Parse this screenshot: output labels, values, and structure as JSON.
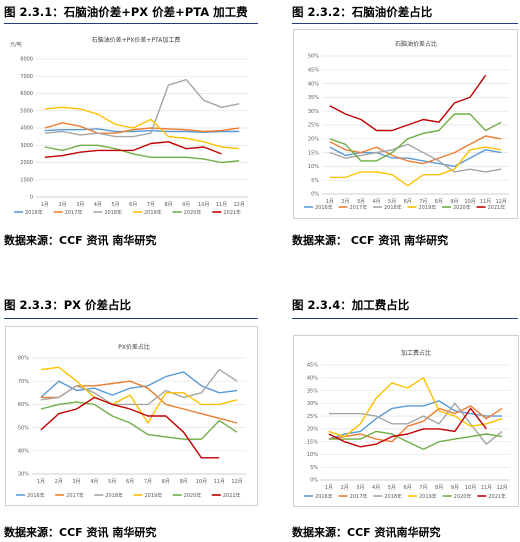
{
  "captions": [
    "图 2.3.1：石脑油价差+PX 价差+PTA 加工费",
    "图 2.3.2：石脑油价差占比",
    "图 2.3.3：PX 价差占比",
    "图 2.3.4：加工费占比"
  ],
  "sources": [
    "数据来源：CCF 资讯 南华研究",
    "数据来源： CCF 资讯 南华研究",
    "数据来源：CCF 资讯 南华研究",
    "数据来源：CCF 资讯南华研究"
  ],
  "series_colors": [
    "#5b9bd5",
    "#ed7d31",
    "#a5a5a5",
    "#ffc000",
    "#70ad47",
    "#c00000"
  ],
  "chart_data": [
    {
      "type": "line",
      "title": "石脑油价差+PX价差+PTA加工费",
      "ylabel": "元/吨",
      "ylim": [
        0,
        8000
      ],
      "yticks": [
        "0",
        "1000",
        "2000",
        "3000",
        "4000",
        "5000",
        "6000",
        "7000",
        "8000"
      ],
      "categories": [
        "1月",
        "2月",
        "3月",
        "4月",
        "5月",
        "6月",
        "7月",
        "8月",
        "9月",
        "10月",
        "11月",
        "12月"
      ],
      "series": [
        {
          "name": "2016年",
          "values": [
            3850,
            3900,
            3900,
            3950,
            3800,
            3800,
            3850,
            3800,
            3800,
            3750,
            3800,
            3800
          ]
        },
        {
          "name": "2017年",
          "values": [
            4000,
            4300,
            4100,
            3700,
            3700,
            3900,
            4000,
            3950,
            3900,
            3800,
            3850,
            4000
          ]
        },
        {
          "name": "2018年",
          "values": [
            3700,
            3800,
            3600,
            3700,
            3500,
            3500,
            3700,
            6500,
            6800,
            5600,
            5200,
            5400
          ]
        },
        {
          "name": "2019年",
          "values": [
            5100,
            5200,
            5100,
            4800,
            4200,
            4000,
            4500,
            3500,
            3400,
            3200,
            2900,
            2800
          ]
        },
        {
          "name": "2020年",
          "values": [
            2900,
            2700,
            3000,
            3000,
            2800,
            2500,
            2300,
            2300,
            2300,
            2200,
            2000,
            2100
          ]
        },
        {
          "name": "2021年",
          "values": [
            2300,
            2400,
            2600,
            2700,
            2700,
            2700,
            3100,
            3200,
            2800,
            2900,
            2500,
            null
          ]
        }
      ]
    },
    {
      "type": "line",
      "title": "石脑油价差占比",
      "ylim": [
        0,
        50
      ],
      "yticks": [
        "0%",
        "5%",
        "10%",
        "15%",
        "20%",
        "25%",
        "30%",
        "35%",
        "40%",
        "45%",
        "50%"
      ],
      "categories": [
        "1月",
        "2月",
        "3月",
        "4月",
        "5月",
        "6月",
        "7月",
        "8月",
        "9月",
        "10月",
        "11月",
        "12月"
      ],
      "series": [
        {
          "name": "2016年",
          "values": [
            17,
            14,
            15,
            15,
            13,
            13,
            12,
            11,
            10,
            13,
            16,
            15
          ]
        },
        {
          "name": "2017年",
          "values": [
            19,
            16,
            15,
            17,
            14,
            12,
            11,
            13,
            15,
            18,
            21,
            20
          ]
        },
        {
          "name": "2018年",
          "values": [
            15,
            13,
            14,
            15,
            16,
            18,
            15,
            12,
            8,
            9,
            8,
            9
          ]
        },
        {
          "name": "2019年",
          "values": [
            6,
            6,
            8,
            8,
            7,
            3,
            7,
            7,
            9,
            16,
            17,
            16
          ]
        },
        {
          "name": "2020年",
          "values": [
            20,
            18,
            12,
            12,
            15,
            20,
            22,
            23,
            29,
            29,
            23,
            26
          ]
        },
        {
          "name": "2021年",
          "values": [
            32,
            29,
            27,
            23,
            23,
            25,
            27,
            26,
            33,
            35,
            43,
            null
          ]
        }
      ]
    },
    {
      "type": "line",
      "title": "PX价差占比",
      "ylim": [
        30,
        80
      ],
      "yticks": [
        "30%",
        "40%",
        "50%",
        "60%",
        "70%",
        "80%"
      ],
      "categories": [
        "1月",
        "2月",
        "3月",
        "4月",
        "5月",
        "6月",
        "7月",
        "8月",
        "9月",
        "10月",
        "11月",
        "12月"
      ],
      "series": [
        {
          "name": "2016年",
          "values": [
            63,
            70,
            66,
            67,
            64,
            67,
            68,
            72,
            74,
            68,
            65,
            66
          ]
        },
        {
          "name": "2017年",
          "values": [
            63,
            63,
            68,
            68,
            69,
            70,
            67,
            60,
            58,
            56,
            54,
            52
          ]
        },
        {
          "name": "2018年",
          "values": [
            62,
            63,
            68,
            65,
            60,
            60,
            60,
            66,
            63,
            65,
            75,
            70
          ]
        },
        {
          "name": "2019年",
          "values": [
            75,
            76,
            70,
            63,
            60,
            64,
            52,
            65,
            65,
            60,
            60,
            62
          ]
        },
        {
          "name": "2020年",
          "values": [
            58,
            60,
            61,
            60,
            55,
            52,
            47,
            46,
            45,
            45,
            53,
            48
          ]
        },
        {
          "name": "2021年",
          "values": [
            49,
            56,
            58,
            63,
            60,
            58,
            55,
            55,
            48,
            37,
            37,
            null
          ]
        }
      ]
    },
    {
      "type": "line",
      "title": "加工费占比",
      "ylim": [
        0,
        45
      ],
      "yticks": [
        "0%",
        "5%",
        "10%",
        "15%",
        "20%",
        "25%",
        "30%",
        "35%",
        "40%",
        "45%"
      ],
      "categories": [
        "1月",
        "2月",
        "3月",
        "4月",
        "5月",
        "6月",
        "7月",
        "8月",
        "9月",
        "10月",
        "11月",
        "12月"
      ],
      "series": [
        {
          "name": "2016年",
          "values": [
            16,
            18,
            19,
            24,
            28,
            29,
            29,
            31,
            27,
            26,
            25,
            25
          ]
        },
        {
          "name": "2017年",
          "values": [
            16,
            17,
            18,
            16,
            15,
            21,
            23,
            28,
            26,
            29,
            24,
            28
          ]
        },
        {
          "name": "2018年",
          "values": [
            26,
            26,
            26,
            25,
            22,
            22,
            25,
            22,
            30,
            22,
            14,
            19
          ]
        },
        {
          "name": "2019年",
          "values": [
            19,
            17,
            22,
            32,
            38,
            36,
            40,
            27,
            25,
            21,
            22,
            24
          ]
        },
        {
          "name": "2020年",
          "values": [
            16,
            16,
            16,
            19,
            18,
            15,
            12,
            15,
            16,
            17,
            18,
            17
          ]
        },
        {
          "name": "2021年",
          "values": [
            18,
            15,
            13,
            14,
            17,
            18,
            20,
            20,
            19,
            28,
            20,
            null
          ]
        }
      ]
    }
  ]
}
